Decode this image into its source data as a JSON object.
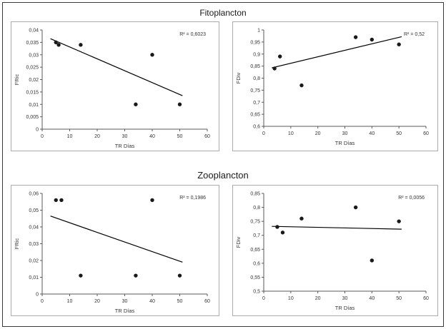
{
  "sections": [
    {
      "title": "Fitoplancton"
    },
    {
      "title": "Zooplancton"
    }
  ],
  "chart_data": [
    {
      "type": "scatter",
      "section": "Fitoplancton",
      "xlabel": "TR Días",
      "ylabel": "FRic",
      "r2_label": "R² = 0,6023",
      "x": [
        5,
        6,
        14,
        34,
        40,
        50
      ],
      "y": [
        0.035,
        0.034,
        0.034,
        0.01,
        0.03,
        0.01
      ],
      "trendline": {
        "x": [
          3,
          51
        ],
        "y": [
          0.0365,
          0.0135
        ]
      },
      "xlim": [
        0,
        60
      ],
      "ylim": [
        0,
        0.04
      ],
      "xticks": [
        0,
        10,
        20,
        30,
        40,
        50,
        60
      ],
      "xtick_labels": [
        "0",
        "10",
        "20",
        "30",
        "40",
        "50",
        "60"
      ],
      "yticks": [
        0,
        0.005,
        0.01,
        0.015,
        0.02,
        0.025,
        0.03,
        0.035,
        0.04
      ],
      "ytick_labels": [
        "0",
        "0,005",
        "0,01",
        "0,015",
        "0,02",
        "0,025",
        "0,03",
        "0,035",
        "0,04"
      ],
      "grid": false,
      "legend": "none"
    },
    {
      "type": "scatter",
      "section": "Fitoplancton",
      "xlabel": "TR Días",
      "ylabel": "FDiv",
      "r2_label": "R² = 0,52",
      "x": [
        4,
        6,
        14,
        34,
        40,
        50
      ],
      "y": [
        0.84,
        0.89,
        0.77,
        0.97,
        0.96,
        0.94
      ],
      "trendline": {
        "x": [
          3,
          51
        ],
        "y": [
          0.843,
          0.972
        ]
      },
      "xlim": [
        0,
        60
      ],
      "ylim": [
        0.6,
        1.0
      ],
      "xticks": [
        0,
        10,
        20,
        30,
        40,
        50,
        60
      ],
      "xtick_labels": [
        "0",
        "10",
        "20",
        "30",
        "40",
        "50",
        "60"
      ],
      "yticks": [
        0.6,
        0.65,
        0.7,
        0.75,
        0.8,
        0.85,
        0.9,
        0.95,
        1.0
      ],
      "ytick_labels": [
        "0,6",
        "0,65",
        "0,7",
        "0,75",
        "0,8",
        "0,85",
        "0,9",
        "0,95",
        "1"
      ],
      "grid": false,
      "legend": "none"
    },
    {
      "type": "scatter",
      "section": "Zooplancton",
      "xlabel": "TR Días",
      "ylabel": "FRic",
      "r2_label": "R² = 0,1986",
      "x": [
        5,
        7,
        14,
        34,
        40,
        50
      ],
      "y": [
        0.056,
        0.056,
        0.011,
        0.011,
        0.056,
        0.011
      ],
      "trendline": {
        "x": [
          3,
          51
        ],
        "y": [
          0.0465,
          0.019
        ]
      },
      "xlim": [
        0,
        60
      ],
      "ylim": [
        0,
        0.06
      ],
      "xticks": [
        0,
        10,
        20,
        30,
        40,
        50,
        60
      ],
      "xtick_labels": [
        "0",
        "10",
        "20",
        "30",
        "40",
        "50",
        "60"
      ],
      "yticks": [
        0,
        0.01,
        0.02,
        0.03,
        0.04,
        0.05,
        0.06
      ],
      "ytick_labels": [
        "0",
        "0,01",
        "0,02",
        "0,03",
        "0,04",
        "0,05",
        "0,06"
      ],
      "grid": false,
      "legend": "none"
    },
    {
      "type": "scatter",
      "section": "Zooplancton",
      "xlabel": "TR Días",
      "ylabel": "FDiv",
      "r2_label": "R² = 0,0056",
      "x": [
        5,
        7,
        14,
        34,
        40,
        50
      ],
      "y": [
        0.73,
        0.71,
        0.76,
        0.8,
        0.61,
        0.75
      ],
      "trendline": {
        "x": [
          3,
          51
        ],
        "y": [
          0.732,
          0.722
        ]
      },
      "xlim": [
        0,
        60
      ],
      "ylim": [
        0.5,
        0.85
      ],
      "xticks": [
        0,
        10,
        20,
        30,
        40,
        50,
        60
      ],
      "xtick_labels": [
        "0",
        "10",
        "20",
        "30",
        "40",
        "50",
        "60"
      ],
      "yticks": [
        0.5,
        0.55,
        0.6,
        0.65,
        0.7,
        0.75,
        0.8,
        0.85
      ],
      "ytick_labels": [
        "0,5",
        "0,55",
        "0,6",
        "0,65",
        "0,7",
        "0,75",
        "0,8",
        "0,85"
      ],
      "grid": false,
      "legend": "none"
    }
  ],
  "style": {
    "point_color": "#1a1a1a",
    "trendline_color": "#000000",
    "axis_color": "#595959"
  }
}
